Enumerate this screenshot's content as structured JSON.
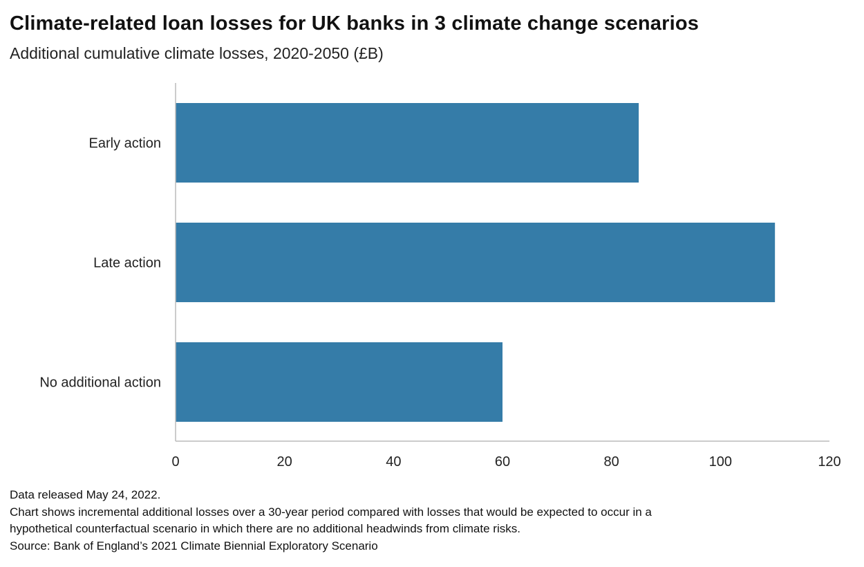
{
  "chart_data": {
    "type": "bar",
    "orientation": "horizontal",
    "title": "Climate-related loan losses for UK banks in 3 climate change scenarios",
    "subtitle": "Additional cumulative climate losses, 2020-2050 (£B)",
    "categories": [
      "Early action",
      "Late action",
      "No additional action"
    ],
    "values": [
      85,
      110,
      60
    ],
    "xlim": [
      0,
      120
    ],
    "xticks": [
      "0",
      "20",
      "40",
      "60",
      "80",
      "100",
      "120"
    ],
    "grid": false,
    "bar_color": "#357ca8",
    "axis_color": "#bbbbbb"
  },
  "notes": [
    "Data released May 24, 2022.",
    "Chart shows incremental additional losses over a 30-year period compared with losses that would be expected to occur in a",
    "hypothetical counterfactual scenario in which there are no additional headwinds from climate risks.",
    "Source: Bank of England’s 2021 Climate Biennial Exploratory Scenario"
  ]
}
